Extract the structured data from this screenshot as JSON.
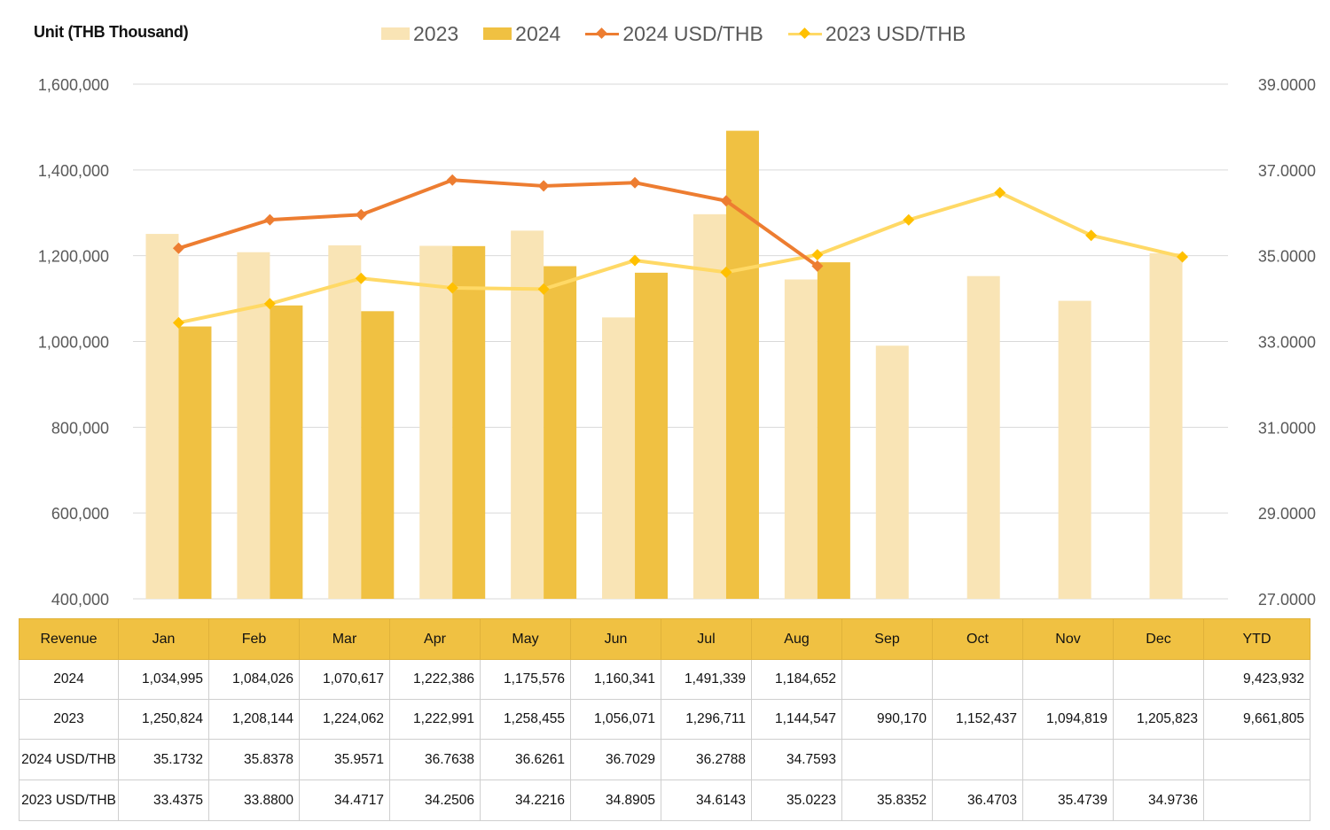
{
  "header": {
    "unit_label": "Unit (THB  Thousand)"
  },
  "legend": [
    {
      "label": "2023",
      "kind": "bar",
      "color": "#f9e4b5"
    },
    {
      "label": "2024",
      "kind": "bar",
      "color": "#f0c142"
    },
    {
      "label": "2024 USD/THB",
      "kind": "line",
      "color": "#ed7d31",
      "marker": "#ed7d31"
    },
    {
      "label": "2023 USD/THB",
      "kind": "line",
      "color": "#ffd966",
      "marker": "#ffc000"
    }
  ],
  "colors": {
    "bar_2023": "#f9e4b5",
    "bar_2024": "#f0c142",
    "line_2024": "#ed7d31",
    "line_2023": "#ffd966",
    "marker_2023": "#ffc000",
    "grid": "#d9d9d9"
  },
  "chart_data": {
    "type": "bar",
    "categories": [
      "Jan",
      "Feb",
      "Mar",
      "Apr",
      "May",
      "Jun",
      "Jul",
      "Aug",
      "Sep",
      "Oct",
      "Nov",
      "Dec"
    ],
    "series": [
      {
        "name": "2023",
        "type": "bar",
        "axis": "left",
        "values": [
          1250824,
          1208144,
          1224062,
          1222991,
          1258455,
          1056071,
          1296711,
          1144547,
          990170,
          1152437,
          1094819,
          1205823
        ]
      },
      {
        "name": "2024",
        "type": "bar",
        "axis": "left",
        "values": [
          1034995,
          1084026,
          1070617,
          1222386,
          1175576,
          1160341,
          1491339,
          1184652,
          null,
          null,
          null,
          null
        ]
      },
      {
        "name": "2024 USD/THB",
        "type": "line",
        "axis": "right",
        "values": [
          35.1732,
          35.8378,
          35.9571,
          36.7638,
          36.6261,
          36.7029,
          36.2788,
          34.7593,
          null,
          null,
          null,
          null
        ]
      },
      {
        "name": "2023 USD/THB",
        "type": "line",
        "axis": "right",
        "values": [
          33.4375,
          33.88,
          34.4717,
          34.2506,
          34.2216,
          34.8905,
          34.6143,
          35.0223,
          35.8352,
          36.4703,
          35.4739,
          34.9736
        ]
      }
    ],
    "ylim": [
      400000,
      1600000
    ],
    "yticks": [
      "400,000",
      "600,000",
      "800,000",
      "1,000,000",
      "1,200,000",
      "1,400,000",
      "1,600,000"
    ],
    "y2lim": [
      27,
      39
    ],
    "y2ticks": [
      "27.0000",
      "29.0000",
      "31.0000",
      "33.0000",
      "35.0000",
      "37.0000",
      "39.0000"
    ],
    "grid": true,
    "legend_position": "top"
  },
  "table": {
    "headers": [
      "Revenue",
      "Jan",
      "Feb",
      "Mar",
      "Apr",
      "May",
      "Jun",
      "Jul",
      "Aug",
      "Sep",
      "Oct",
      "Nov",
      "Dec",
      "YTD"
    ],
    "rows": [
      {
        "label": "2024",
        "cells": [
          "1,034,995",
          "1,084,026",
          "1,070,617",
          "1,222,386",
          "1,175,576",
          "1,160,341",
          "1,491,339",
          "1,184,652",
          "",
          "",
          "",
          "",
          "9,423,932"
        ]
      },
      {
        "label": "2023",
        "cells": [
          "1,250,824",
          "1,208,144",
          "1,224,062",
          "1,222,991",
          "1,258,455",
          "1,056,071",
          "1,296,711",
          "1,144,547",
          "990,170",
          "1,152,437",
          "1,094,819",
          "1,205,823",
          "9,661,805"
        ]
      },
      {
        "label": "2024 USD/THB",
        "cells": [
          "35.1732",
          "35.8378",
          "35.9571",
          "36.7638",
          "36.6261",
          "36.7029",
          "36.2788",
          "34.7593",
          "",
          "",
          "",
          "",
          ""
        ]
      },
      {
        "label": "2023 USD/THB",
        "cells": [
          "33.4375",
          "33.8800",
          "34.4717",
          "34.2506",
          "34.2216",
          "34.8905",
          "34.6143",
          "35.0223",
          "35.8352",
          "36.4703",
          "35.4739",
          "34.9736",
          ""
        ]
      }
    ]
  }
}
